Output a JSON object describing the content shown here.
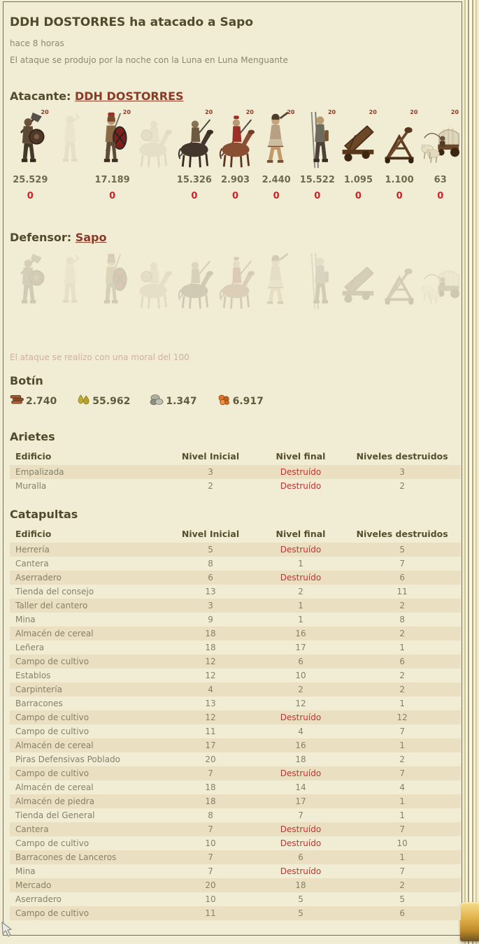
{
  "header": {
    "title": "DDH DOSTORRES ha atacado a Sapo",
    "time_ago": "hace 8 horas",
    "conditions": "El ataque se produjo por la noche con la Luna en Luna Menguante"
  },
  "attacker": {
    "label": "Atacante:",
    "name": "DDH DOSTORRES",
    "units": [
      {
        "type": "axeman",
        "badge": "20",
        "count": "25.529",
        "losses": "0",
        "ghost": false
      },
      {
        "type": "scout",
        "ghost": true
      },
      {
        "type": "legionnaire",
        "badge": "20",
        "count": "17.189",
        "losses": "0",
        "ghost": false
      },
      {
        "type": "paladin",
        "ghost": true
      },
      {
        "type": "cavalry-dark",
        "badge": "20",
        "count": "15.326",
        "losses": "0",
        "ghost": false
      },
      {
        "type": "cavalry-red",
        "badge": "20",
        "count": "2.903",
        "losses": "0",
        "ghost": false
      },
      {
        "type": "thrower",
        "badge": "20",
        "count": "2.440",
        "losses": "0",
        "ghost": false
      },
      {
        "type": "spearman",
        "badge": "20",
        "count": "15.522",
        "losses": "0",
        "ghost": false
      },
      {
        "type": "ram",
        "badge": "20",
        "count": "1.095",
        "losses": "0",
        "ghost": false
      },
      {
        "type": "catapult",
        "badge": "20",
        "count": "1.100",
        "losses": "0",
        "ghost": false
      },
      {
        "type": "cart",
        "badge": "20",
        "count": "63",
        "losses": "0",
        "ghost": false
      }
    ]
  },
  "defender": {
    "label": "Defensor:",
    "name": "Sapo",
    "units": [
      {
        "type": "axeman",
        "ghost": true
      },
      {
        "type": "scout",
        "ghost": true
      },
      {
        "type": "legionnaire",
        "ghost": true
      },
      {
        "type": "paladin",
        "ghost": true
      },
      {
        "type": "cavalry-dark",
        "ghost": true
      },
      {
        "type": "cavalry-red",
        "ghost": true
      },
      {
        "type": "thrower",
        "ghost": true
      },
      {
        "type": "spearman",
        "ghost": true
      },
      {
        "type": "ram",
        "ghost": true
      },
      {
        "type": "catapult",
        "ghost": true
      },
      {
        "type": "cart",
        "ghost": true
      }
    ]
  },
  "morale_text": "El ataque se realizo con una moral del 100",
  "loot": {
    "title": "Botín",
    "items": [
      {
        "icon": "wood-icon",
        "amount": "2.740"
      },
      {
        "icon": "sacks-icon",
        "amount": "55.962"
      },
      {
        "icon": "stone-icon",
        "amount": "1.347"
      },
      {
        "icon": "ore-icon",
        "amount": "6.917"
      }
    ]
  },
  "rams_table": {
    "title": "Arietes",
    "headers": [
      "Edificio",
      "Nivel Inicial",
      "Nivel final",
      "Niveles destruidos"
    ],
    "rows": [
      [
        "Empalizada",
        "3",
        "Destruído",
        "3"
      ],
      [
        "Muralla",
        "2",
        "Destruído",
        "2"
      ]
    ]
  },
  "catapults_table": {
    "title": "Catapultas",
    "headers": [
      "Edificio",
      "Nivel Inicial",
      "Nivel final",
      "Niveles destruidos"
    ],
    "rows": [
      [
        "Herrería",
        "5",
        "Destruído",
        "5"
      ],
      [
        "Cantera",
        "8",
        "1",
        "7"
      ],
      [
        "Aserradero",
        "6",
        "Destruído",
        "6"
      ],
      [
        "Tienda del consejo",
        "13",
        "2",
        "11"
      ],
      [
        "Taller del cantero",
        "3",
        "1",
        "2"
      ],
      [
        "Mina",
        "9",
        "1",
        "8"
      ],
      [
        "Almacén de cereal",
        "18",
        "16",
        "2"
      ],
      [
        "Leñera",
        "18",
        "17",
        "1"
      ],
      [
        "Campo de cultivo",
        "12",
        "6",
        "6"
      ],
      [
        "Establos",
        "12",
        "10",
        "2"
      ],
      [
        "Carpintería",
        "4",
        "2",
        "2"
      ],
      [
        "Barracones",
        "13",
        "12",
        "1"
      ],
      [
        "Campo de cultivo",
        "12",
        "Destruído",
        "12"
      ],
      [
        "Campo de cultivo",
        "11",
        "4",
        "7"
      ],
      [
        "Almacén de cereal",
        "17",
        "16",
        "1"
      ],
      [
        "Piras Defensivas Poblado",
        "20",
        "18",
        "2"
      ],
      [
        "Campo de cultivo",
        "7",
        "Destruído",
        "7"
      ],
      [
        "Almacén de cereal",
        "18",
        "14",
        "4"
      ],
      [
        "Almacén de piedra",
        "18",
        "17",
        "1"
      ],
      [
        "Tienda del General",
        "8",
        "7",
        "1"
      ],
      [
        "Cantera",
        "7",
        "Destruído",
        "7"
      ],
      [
        "Campo de cultivo",
        "10",
        "Destruído",
        "10"
      ],
      [
        "Barracones de Lanceros",
        "7",
        "6",
        "1"
      ],
      [
        "Mina",
        "7",
        "Destruído",
        "7"
      ],
      [
        "Mercado",
        "20",
        "18",
        "2"
      ],
      [
        "Aserradero",
        "10",
        "5",
        "5"
      ],
      [
        "Campo de cultivo",
        "11",
        "5",
        "6"
      ]
    ]
  },
  "colors": {
    "background": "#f1ecd4",
    "heading": "#4f4b2c",
    "link": "#8c3a26",
    "muted": "#8b8774",
    "count": "#6e6a4e",
    "losses_red": "#cc2128",
    "destroyed_red": "#c53131",
    "row_shade": "#ebdfc1",
    "morale": "#cdb1a1"
  },
  "destroyed_word": "Destruído"
}
